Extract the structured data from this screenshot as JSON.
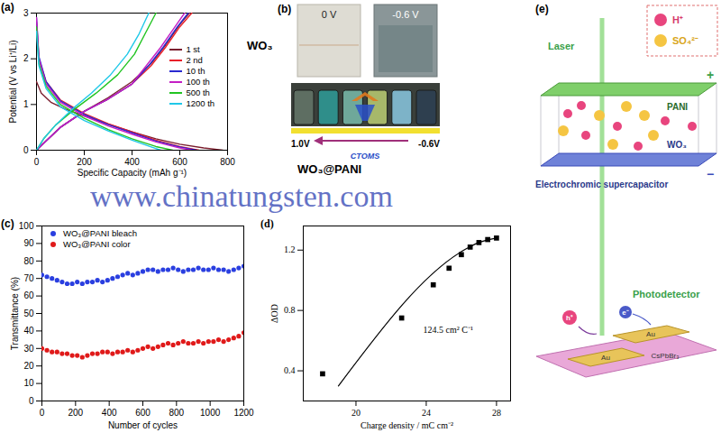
{
  "chart_data": [
    {
      "type": "line",
      "label": "(a)",
      "x_label": "Specific Capacity (mAh g⁻¹)",
      "y_label": "Potential (V vs Li⁺/Li)",
      "xlim": [
        0,
        800
      ],
      "xticks": [
        0,
        200,
        400,
        600,
        800
      ],
      "ylim": [
        0,
        3
      ],
      "yticks": [
        0,
        1,
        2,
        3
      ],
      "grid": false,
      "legend": "right",
      "series": [
        {
          "name": "1 st",
          "color": "#7b1e2e",
          "segments": [
            {
              "x": [
                0,
                20,
                60,
                120,
                200,
                300,
                400,
                500,
                600,
                700,
                780
              ],
              "values": [
                1.5,
                1.25,
                1.05,
                0.9,
                0.75,
                0.57,
                0.4,
                0.25,
                0.13,
                0.05,
                0
              ]
            },
            {
              "x": [
                0,
                40,
                100,
                200,
                300,
                400,
                480,
                540,
                600,
                640
              ],
              "values": [
                0,
                0.2,
                0.5,
                0.85,
                1.15,
                1.5,
                1.9,
                2.3,
                2.75,
                3.0
              ]
            }
          ]
        },
        {
          "name": "2 nd",
          "color": "#e8202a",
          "segments": [
            {
              "x": [
                0,
                10,
                40,
                100,
                200,
                300,
                400,
                500,
                600,
                680
              ],
              "values": [
                2.8,
                2.0,
                1.5,
                1.1,
                0.8,
                0.58,
                0.4,
                0.22,
                0.08,
                0
              ]
            },
            {
              "x": [
                0,
                40,
                100,
                200,
                300,
                400,
                480,
                540,
                600,
                650
              ],
              "values": [
                0,
                0.2,
                0.5,
                0.85,
                1.12,
                1.45,
                1.85,
                2.25,
                2.7,
                3.0
              ]
            }
          ]
        },
        {
          "name": "10 th",
          "color": "#2a2ad0",
          "segments": [
            {
              "x": [
                0,
                10,
                40,
                100,
                200,
                300,
                400,
                500,
                600,
                670
              ],
              "values": [
                2.9,
                2.05,
                1.5,
                1.08,
                0.78,
                0.56,
                0.38,
                0.2,
                0.07,
                0
              ]
            },
            {
              "x": [
                0,
                40,
                100,
                200,
                300,
                400,
                470,
                530,
                590,
                635
              ],
              "values": [
                0,
                0.2,
                0.5,
                0.85,
                1.12,
                1.45,
                1.85,
                2.25,
                2.7,
                3.0
              ]
            }
          ]
        },
        {
          "name": "100 th",
          "color": "#c41fc4",
          "segments": [
            {
              "x": [
                0,
                10,
                40,
                100,
                200,
                300,
                400,
                500,
                600,
                650
              ],
              "values": [
                2.9,
                2.0,
                1.45,
                1.05,
                0.75,
                0.53,
                0.35,
                0.18,
                0.05,
                0
              ]
            },
            {
              "x": [
                0,
                40,
                100,
                200,
                300,
                400,
                460,
                520,
                580,
                620
              ],
              "values": [
                0,
                0.2,
                0.5,
                0.85,
                1.12,
                1.45,
                1.85,
                2.25,
                2.7,
                3.0
              ]
            }
          ]
        },
        {
          "name": "500 th",
          "color": "#22c422",
          "segments": [
            {
              "x": [
                0,
                10,
                40,
                100,
                200,
                300,
                400,
                500,
                570
              ],
              "values": [
                2.7,
                1.9,
                1.4,
                1.0,
                0.7,
                0.45,
                0.25,
                0.08,
                0
              ]
            },
            {
              "x": [
                0,
                30,
                80,
                160,
                250,
                340,
                410,
                460,
                500
              ],
              "values": [
                0,
                0.25,
                0.55,
                0.9,
                1.25,
                1.65,
                2.1,
                2.6,
                3.0
              ]
            }
          ]
        },
        {
          "name": "1200 th",
          "color": "#20c8e8",
          "segments": [
            {
              "x": [
                0,
                10,
                40,
                100,
                200,
                300,
                400,
                480,
                520
              ],
              "values": [
                2.6,
                1.85,
                1.35,
                0.95,
                0.65,
                0.42,
                0.22,
                0.07,
                0
              ]
            },
            {
              "x": [
                0,
                30,
                80,
                150,
                230,
                310,
                380,
                430,
                470
              ],
              "values": [
                0,
                0.25,
                0.55,
                0.9,
                1.25,
                1.65,
                2.1,
                2.55,
                3.0
              ]
            }
          ]
        }
      ]
    },
    {
      "type": "scatter",
      "label": "(c)",
      "x_label": "Number of cycles",
      "y_label": "Transmittance (%)",
      "xlim": [
        0,
        1200
      ],
      "xticks": [
        0,
        200,
        400,
        600,
        800,
        1000,
        1200
      ],
      "ylim": [
        0,
        100
      ],
      "yticks": [
        0,
        10,
        20,
        30,
        40,
        50,
        60,
        70,
        80,
        90,
        100
      ],
      "grid": false,
      "legend": "upper left",
      "series": [
        {
          "name": "WO₃@PANI bleach",
          "color": "#2a3fe0",
          "marker": "circle",
          "x": [
            0,
            30,
            60,
            90,
            120,
            150,
            180,
            210,
            240,
            270,
            300,
            330,
            360,
            390,
            420,
            450,
            480,
            510,
            540,
            570,
            600,
            630,
            660,
            690,
            720,
            750,
            780,
            810,
            840,
            870,
            900,
            930,
            960,
            990,
            1020,
            1050,
            1080,
            1110,
            1140,
            1170,
            1200
          ],
          "values": [
            72,
            71,
            70,
            69,
            68,
            67,
            67,
            68,
            67,
            68,
            68,
            69,
            68,
            69,
            70,
            71,
            72,
            73,
            72,
            73,
            74,
            75,
            75,
            74,
            75,
            75,
            76,
            75,
            74,
            75,
            75,
            76,
            75,
            75,
            76,
            75,
            75,
            74,
            75,
            76,
            77
          ]
        },
        {
          "name": "WO₃@PANI color",
          "color": "#e01a1a",
          "marker": "circle",
          "x": [
            0,
            30,
            60,
            90,
            120,
            150,
            180,
            210,
            240,
            270,
            300,
            330,
            360,
            390,
            420,
            450,
            480,
            510,
            540,
            570,
            600,
            630,
            660,
            690,
            720,
            750,
            780,
            810,
            840,
            870,
            900,
            930,
            960,
            990,
            1020,
            1050,
            1080,
            1110,
            1140,
            1170,
            1200
          ],
          "values": [
            30,
            29,
            28,
            28,
            27,
            27,
            26,
            26,
            25,
            26,
            27,
            27,
            28,
            28,
            27,
            28,
            28,
            29,
            28,
            29,
            30,
            31,
            30,
            31,
            32,
            33,
            32,
            33,
            34,
            33,
            33,
            34,
            33,
            34,
            34,
            35,
            34,
            35,
            36,
            37,
            39
          ]
        }
      ]
    },
    {
      "type": "scatter",
      "label": "(d)",
      "x_label": "Charge density / mC cm⁻²",
      "y_label": "ΔOD",
      "xlim": [
        17,
        28.8
      ],
      "xticks": [
        20,
        24,
        28
      ],
      "ylim": [
        0.2,
        1.36
      ],
      "yticks": [
        0.4,
        0.8,
        1.2
      ],
      "grid": false,
      "annotation": "124.5 cm² C⁻¹",
      "series": [
        {
          "color": "#000000",
          "marker": "square",
          "x": [
            18.1,
            22.6,
            24.4,
            25.3,
            26.0,
            26.5,
            27.0,
            27.5,
            28.0
          ],
          "values": [
            0.38,
            0.75,
            0.97,
            1.08,
            1.17,
            1.22,
            1.25,
            1.27,
            1.28
          ],
          "fit": {
            "color": "#000000",
            "x": [
              19,
              26.3,
              27,
              28
            ],
            "values": [
              0.3,
              1.21,
              1.25,
              1.28
            ]
          }
        }
      ]
    }
  ],
  "panel_b": {
    "label": "(b)",
    "film": "WO₃",
    "photo_voltages": [
      "0 V",
      "-0.6 V"
    ],
    "composite": "WO₃@PANI",
    "scale_ends": [
      "1.0V",
      "-0.6V"
    ]
  },
  "panel_e": {
    "label": "(e)",
    "laser": "Laser",
    "ions": [
      "H⁺",
      "SO₄²⁻"
    ],
    "electrodes": [
      "PANI",
      "WO₃"
    ],
    "polarity": [
      "+",
      "−"
    ],
    "device_1": "Electrochromic supercapacitor",
    "device_2": "Photodetector",
    "carriers": [
      "h⁺",
      "e⁻"
    ],
    "contacts": [
      "Au",
      "Au"
    ],
    "absorber": "CsPbBr₃"
  },
  "watermark": {
    "text": "www.chinatungsten.com",
    "logo": "CTOMS"
  }
}
